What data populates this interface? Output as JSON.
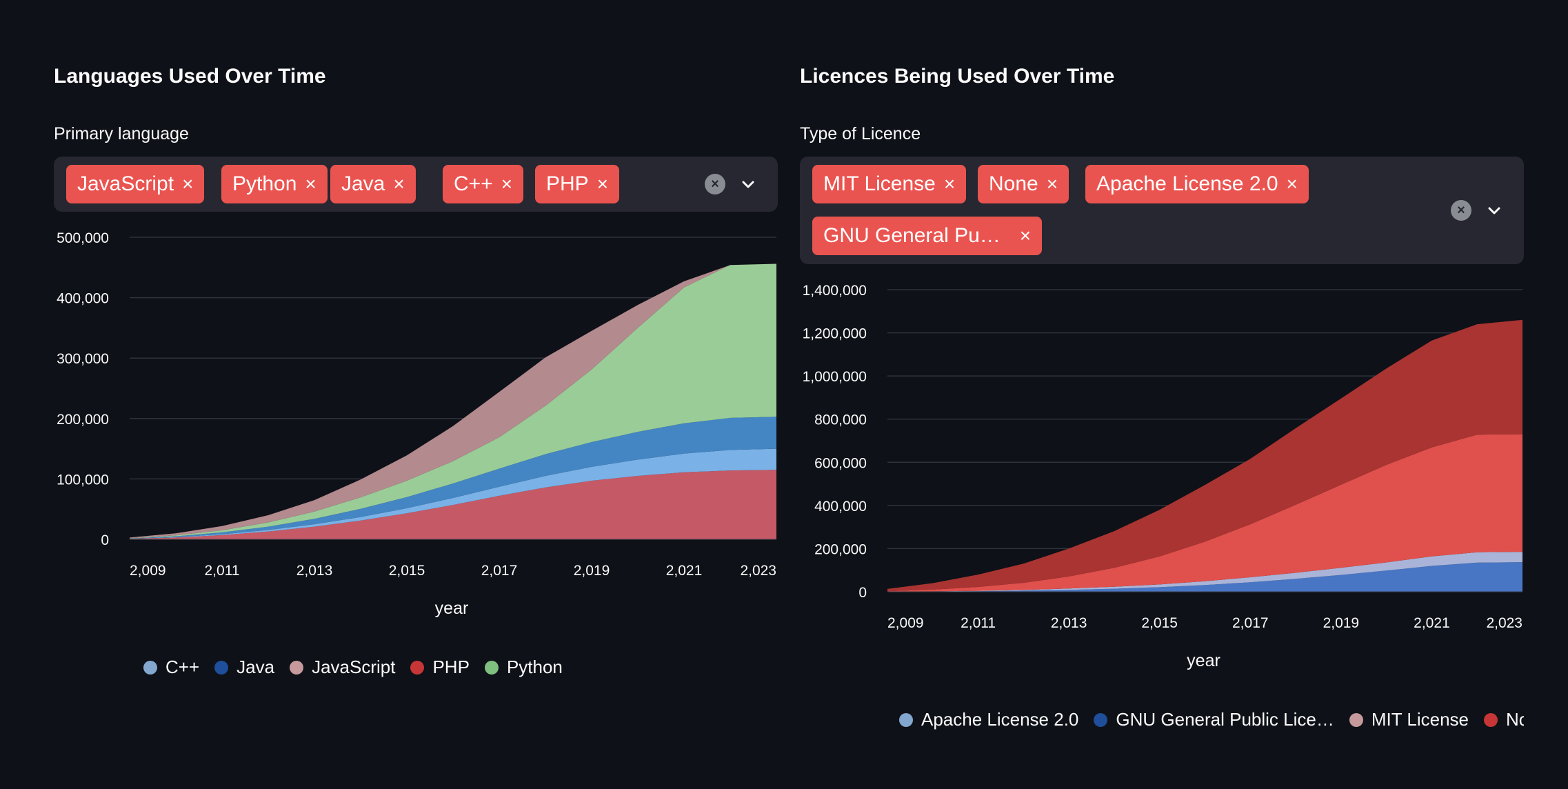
{
  "left": {
    "title": "Languages Used Over Time",
    "field_label": "Primary language",
    "tags": [
      "JavaScript",
      "Python",
      "Java",
      "C++",
      "PHP"
    ],
    "tag_close_glyph": "×",
    "clear_glyph": "×"
  },
  "right": {
    "title": "Licences Being Used Over Time",
    "field_label": "Type of Licence",
    "tags": [
      "MIT License",
      "None",
      "Apache License 2.0",
      "GNU General Pu…"
    ],
    "tag_close_glyph": "×",
    "clear_glyph": "×"
  },
  "colors": {
    "background": "#0e1117",
    "widget": "#262730",
    "tag": "#ea5450",
    "grid": "#2f323b"
  },
  "chart_data": [
    {
      "type": "area",
      "stacked": true,
      "xlabel": "year",
      "ylabel": "",
      "x": [
        2009,
        2010,
        2011,
        2012,
        2013,
        2014,
        2015,
        2016,
        2017,
        2018,
        2019,
        2020,
        2021,
        2022,
        2023
      ],
      "x_tick_labels": [
        "2,009",
        "2,011",
        "2,013",
        "2,015",
        "2,017",
        "2,019",
        "2,021",
        "2,023"
      ],
      "x_ticks": [
        2009,
        2011,
        2013,
        2015,
        2017,
        2019,
        2021,
        2023
      ],
      "ylim": [
        0,
        500000
      ],
      "y_ticks": [
        0,
        100000,
        200000,
        300000,
        400000,
        500000
      ],
      "y_tick_labels": [
        "0",
        "100,000",
        "200,000",
        "300,000",
        "400,000",
        "500,000"
      ],
      "grid": true,
      "legend_position": "bottom",
      "series": [
        {
          "name": "PHP",
          "color": "#c55a66",
          "values": [
            1000,
            3000,
            7000,
            13000,
            21000,
            31000,
            43000,
            57000,
            72000,
            86000,
            97000,
            105000,
            111000,
            114000,
            115000
          ]
        },
        {
          "name": "C++",
          "color": "#7ab1e6",
          "values": [
            200,
            700,
            1500,
            2500,
            4000,
            6000,
            8500,
            11500,
            15000,
            19000,
            23000,
            27000,
            31000,
            34000,
            35000
          ]
        },
        {
          "name": "Java",
          "color": "#4386c3",
          "values": [
            300,
            1300,
            3000,
            5500,
            9000,
            13500,
            18500,
            24000,
            30000,
            36000,
            41000,
            46000,
            50000,
            53000,
            53000
          ]
        },
        {
          "name": "Python",
          "color": "#9acc98",
          "values": [
            300,
            1500,
            3500,
            7000,
            12000,
            19000,
            27000,
            37000,
            52000,
            80000,
            120000,
            172000,
            225000,
            253000,
            253000
          ]
        },
        {
          "name": "JavaScript",
          "color": "#b38a8e",
          "values": [
            1200,
            3500,
            7000,
            12000,
            19000,
            29500,
            42000,
            58000,
            75000,
            80000,
            64000,
            38000,
            10000,
            0,
            0
          ]
        }
      ],
      "legend": [
        {
          "name": "C++",
          "color": "#83a7cf"
        },
        {
          "name": "Java",
          "color": "#1f4e9a"
        },
        {
          "name": "JavaScript",
          "color": "#c69a9c"
        },
        {
          "name": "PHP",
          "color": "#c73636"
        },
        {
          "name": "Python",
          "color": "#7fbf7f"
        }
      ]
    },
    {
      "type": "area",
      "stacked": true,
      "xlabel": "year",
      "ylabel": "",
      "x": [
        2009,
        2010,
        2011,
        2012,
        2013,
        2014,
        2015,
        2016,
        2017,
        2018,
        2019,
        2020,
        2021,
        2022,
        2023
      ],
      "x_tick_labels": [
        "2,009",
        "2,011",
        "2,013",
        "2,015",
        "2,017",
        "2,019",
        "2,021",
        "2,023"
      ],
      "x_ticks": [
        2009,
        2011,
        2013,
        2015,
        2017,
        2019,
        2021,
        2023
      ],
      "ylim": [
        0,
        1400000
      ],
      "y_ticks": [
        0,
        200000,
        400000,
        600000,
        800000,
        1000000,
        1200000,
        1400000
      ],
      "y_tick_labels": [
        "0",
        "200,000",
        "400,000",
        "600,000",
        "800,000",
        "1,000,000",
        "1,200,000",
        "1,400,000"
      ],
      "grid": true,
      "legend_position": "bottom",
      "series": [
        {
          "name": "GNU General Public License",
          "color": "#4876c4",
          "values": [
            200,
            1000,
            2500,
            5000,
            9000,
            14000,
            21000,
            31000,
            44000,
            60000,
            78000,
            98000,
            120000,
            135000,
            137000
          ]
        },
        {
          "name": "Apache License 2.0",
          "color": "#aab4d8",
          "values": [
            300,
            1000,
            2000,
            3500,
            6000,
            9000,
            13000,
            18000,
            23000,
            28000,
            33000,
            38000,
            44000,
            48000,
            48000
          ]
        },
        {
          "name": "MIT License",
          "color": "#e0504c",
          "values": [
            2500,
            8000,
            18000,
            33000,
            56000,
            88000,
            130000,
            183000,
            246000,
            315000,
            385000,
            452000,
            505000,
            545000,
            545000
          ]
        },
        {
          "name": "None",
          "color": "#a93432",
          "values": [
            10000,
            30000,
            57000,
            89000,
            129000,
            170000,
            216000,
            263000,
            303000,
            355000,
            400000,
            447000,
            495000,
            512000,
            530000
          ]
        }
      ],
      "legend": [
        {
          "name": "Apache License 2.0",
          "color": "#83a7cf"
        },
        {
          "name": "GNU General Public Lice…",
          "color": "#1f4e9a"
        },
        {
          "name": "MIT License",
          "color": "#c69a9c"
        },
        {
          "name": "None",
          "color": "#c73636"
        }
      ]
    }
  ]
}
